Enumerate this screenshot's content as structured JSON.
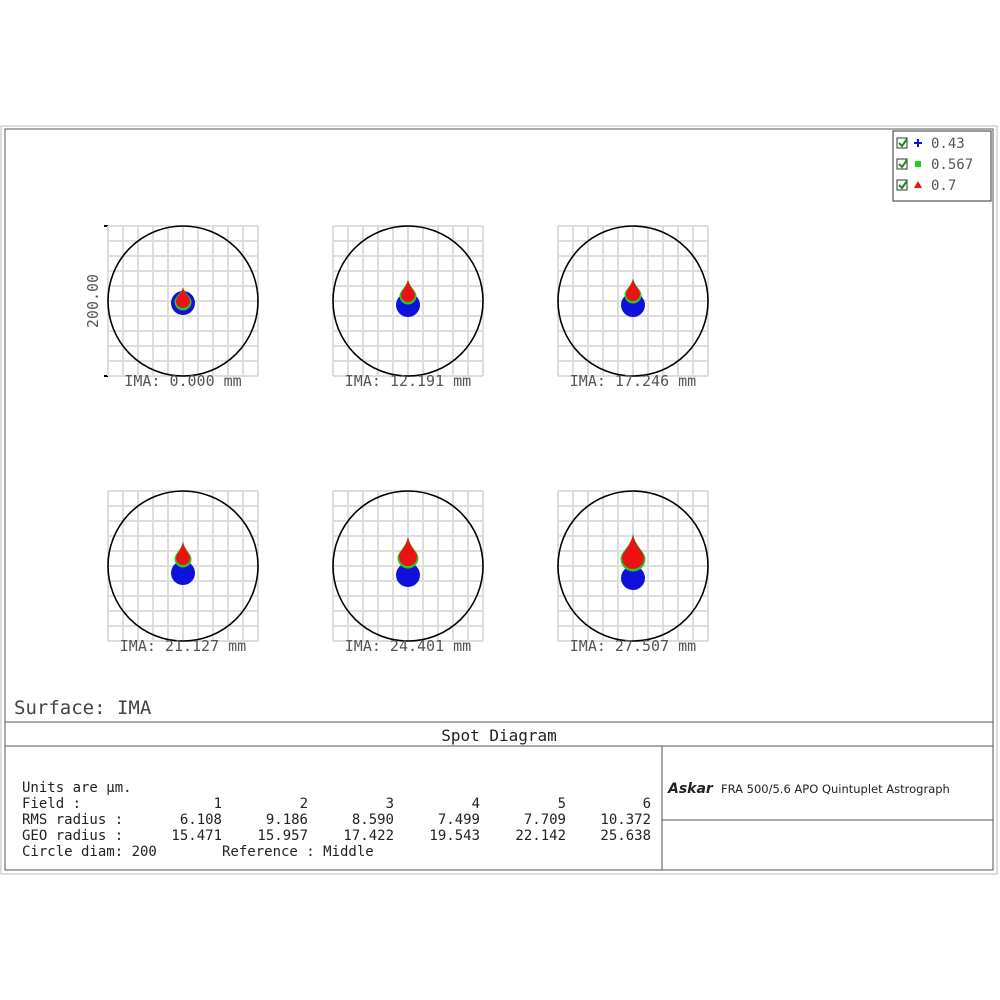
{
  "legend": [
    {
      "label": "0.43",
      "color": "#1010dd"
    },
    {
      "label": "0.567",
      "color": "#22cc22"
    },
    {
      "label": "0.7",
      "color": "#ee1111"
    }
  ],
  "scale_label": "200.00",
  "fields": [
    "IMA: 0.000 mm",
    "IMA: 12.191 mm",
    "IMA: 17.246 mm",
    "IMA: 21.127 mm",
    "IMA: 24.401 mm",
    "IMA: 27.507 mm"
  ],
  "surface_label": "Surface: IMA",
  "title": "Spot Diagram",
  "info": {
    "units": "Units are µm.",
    "rows": [
      [
        "Field      :",
        "1",
        "2",
        "3",
        "4",
        "5",
        "6"
      ],
      [
        "RMS radius :",
        "6.108",
        "9.186",
        "8.590",
        "7.499",
        "7.709",
        "10.372"
      ],
      [
        "GEO radius :",
        "15.471",
        "15.957",
        "17.422",
        "19.543",
        "22.142",
        "25.638"
      ]
    ],
    "circle": "Circle diam: 200",
    "reference": "Reference  : Middle"
  },
  "brand": "Askar",
  "product": "FRA 500/5.6 APO Quintuplet Astrograph"
}
